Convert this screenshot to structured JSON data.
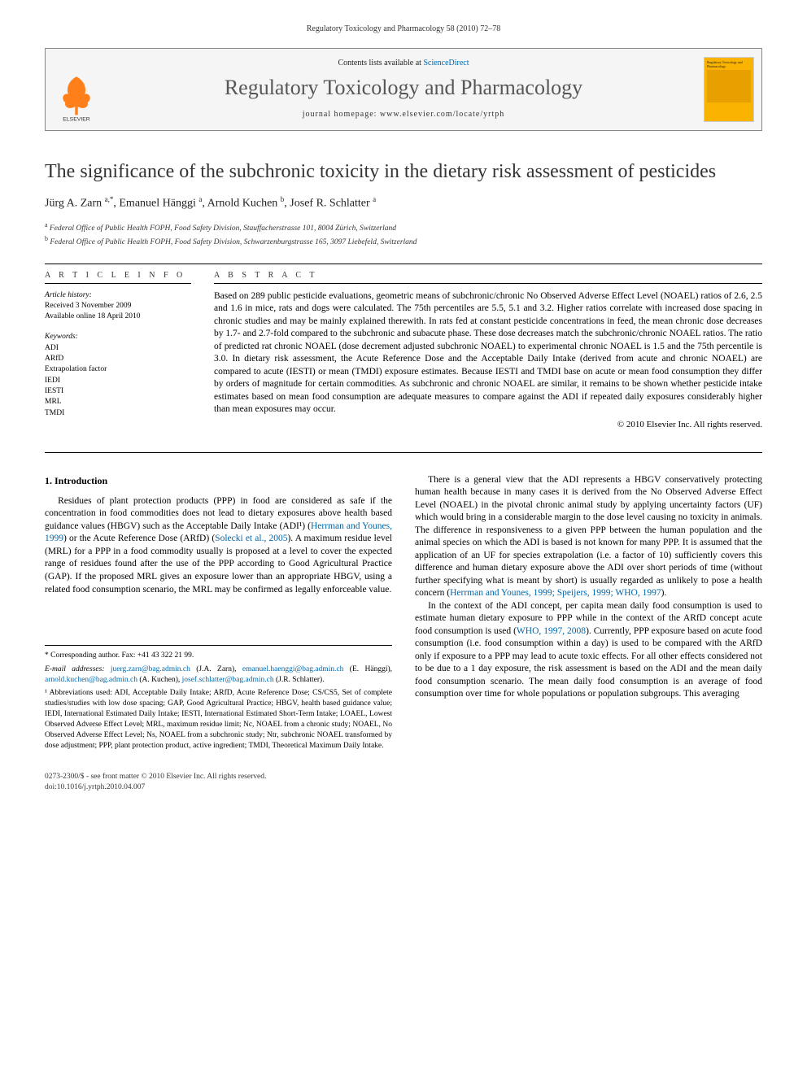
{
  "header_running": "Regulatory Toxicology and Pharmacology 58 (2010) 72–78",
  "masthead": {
    "contents_prefix": "Contents lists available at ",
    "contents_link": "ScienceDirect",
    "journal_title": "Regulatory Toxicology and Pharmacology",
    "homepage_label": "journal homepage: www.elsevier.com/locate/yrtph",
    "publisher_logo_text": "ELSEVIER",
    "cover_title": "Regulatory Toxicology and Pharmacology"
  },
  "article": {
    "title": "The significance of the subchronic toxicity in the dietary risk assessment of pesticides",
    "authors_html": "Jürg A. Zarn <sup>a,*</sup>, Emanuel Hänggi <sup>a</sup>, Arnold Kuchen <sup>b</sup>, Josef R. Schlatter <sup>a</sup>",
    "affiliations": {
      "a": "Federal Office of Public Health FOPH, Food Safety Division, Stauffacherstrasse 101, 8004 Zürich, Switzerland",
      "b": "Federal Office of Public Health FOPH, Food Safety Division, Schwarzenburgstrasse 165, 3097 Liebefeld, Switzerland"
    }
  },
  "article_info": {
    "heading": "A R T I C L E   I N F O",
    "history_label": "Article history:",
    "received": "Received 3 November 2009",
    "online": "Available online 18 April 2010",
    "keywords_label": "Keywords:",
    "keywords": [
      "ADI",
      "ARfD",
      "Extrapolation factor",
      "IEDI",
      "IESTI",
      "MRL",
      "TMDI"
    ]
  },
  "abstract": {
    "heading": "A B S T R A C T",
    "text": "Based on 289 public pesticide evaluations, geometric means of subchronic/chronic No Observed Adverse Effect Level (NOAEL) ratios of 2.6, 2.5 and 1.6 in mice, rats and dogs were calculated. The 75th percentiles are 5.5, 5.1 and 3.2. Higher ratios correlate with increased dose spacing in chronic studies and may be mainly explained therewith. In rats fed at constant pesticide concentrations in feed, the mean chronic dose decreases by 1.7- and 2.7-fold compared to the subchronic and subacute phase. These dose decreases match the subchronic/chronic NOAEL ratios. The ratio of predicted rat chronic NOAEL (dose decrement adjusted subchronic NOAEL) to experimental chronic NOAEL is 1.5 and the 75th percentile is 3.0. In dietary risk assessment, the Acute Reference Dose and the Acceptable Daily Intake (derived from acute and chronic NOAEL) are compared to acute (IESTI) or mean (TMDI) exposure estimates. Because IESTI and TMDI base on acute or mean food consumption they differ by orders of magnitude for certain commodities. As subchronic and chronic NOAEL are similar, it remains to be shown whether pesticide intake estimates based on mean food consumption are adequate measures to compare against the ADI if repeated daily exposures considerably higher than mean exposures may occur.",
    "copyright": "© 2010 Elsevier Inc. All rights reserved."
  },
  "body": {
    "section1_heading": "1. Introduction",
    "p1": "Residues of plant protection products (PPP) in food are considered as safe if the concentration in food commodities does not lead to dietary exposures above health based guidance values (HBGV) such as the Acceptable Daily Intake (ADI¹) (Herrman and Younes, 1999) or the Acute Reference Dose (ARfD) (Solecki et al., 2005). A maximum residue level (MRL) for a PPP in a food commodity usually is proposed at a level to cover the expected range of residues found after the use of the PPP according to Good Agricultural Practice (GAP). If the proposed MRL gives an exposure lower than an appropriate HBGV, using a related food consumption scenario, the MRL may be confirmed as legally enforceable value.",
    "p2": "There is a general view that the ADI represents a HBGV conservatively protecting human health because in many cases it is derived from the No Observed Adverse Effect Level (NOAEL) in the pivotal chronic animal study by applying uncertainty factors (UF) which would bring in a considerable margin to the dose level causing no toxicity in animals. The difference in responsiveness to a given PPP between the human population and the animal species on which the ADI is based is not known for many PPP. It is assumed that the application of an UF for species extrapolation (i.e. a factor of 10) sufficiently covers this difference and human dietary exposure above the ADI over short periods of time (without further specifying what is meant by short) is usually regarded as unlikely to pose a health concern (Herrman and Younes, 1999; Speijers, 1999; WHO, 1997).",
    "p3": "In the context of the ADI concept, per capita mean daily food consumption is used to estimate human dietary exposure to PPP while in the context of the ARfD concept acute food consumption is used (WHO, 1997, 2008). Currently, PPP exposure based on acute food consumption (i.e. food consumption within a day) is used to be compared with the ARfD only if exposure to a PPP may lead to acute toxic effects. For all other effects considered not to be due to a 1 day exposure, the risk assessment is based on the ADI and the mean daily food consumption scenario. The mean daily food consumption is an average of food consumption over time for whole populations or population subgroups. This averaging",
    "cite1": "Herrman and Younes, 1999",
    "cite2": "Solecki et al., 2005",
    "cite3": "Herrman and Younes, 1999; Speijers, 1999; WHO, 1997",
    "cite4": "WHO, 1997, 2008"
  },
  "footnotes": {
    "corresponding": "* Corresponding author. Fax: +41 43 322 21 99.",
    "emails_label": "E-mail addresses:",
    "emails": [
      {
        "addr": "juerg.zarn@bag.admin.ch",
        "who": "(J.A. Zarn)"
      },
      {
        "addr": "emanuel.haenggi@bag.admin.ch",
        "who": "(E. Hänggi)"
      },
      {
        "addr": "arnold.kuchen@bag.admin.ch",
        "who": "(A. Kuchen)"
      },
      {
        "addr": "josef.schlatter@bag.admin.ch",
        "who": "(J.R. Schlatter)"
      }
    ],
    "abbrev": "¹ Abbreviations used: ADI, Acceptable Daily Intake; ARfD, Acute Reference Dose; CS/CS5, Set of complete studies/studies with low dose spacing; GAP, Good Agricultural Practice; HBGV, health based guidance value; IEDI, International Estimated Daily Intake; IESTI, International Estimated Short-Term Intake; LOAEL, Lowest Observed Adverse Effect Level; MRL, maximum residue limit; Nc, NOAEL from a chronic study; NOAEL, No Observed Adverse Effect Level; Ns, NOAEL from a subchronic study; Ntr, subchronic NOAEL transformed by dose adjustment; PPP, plant protection product, active ingredient; TMDI, Theoretical Maximum Daily Intake."
  },
  "footer": {
    "line1": "0273-2300/$ - see front matter © 2010 Elsevier Inc. All rights reserved.",
    "doi": "doi:10.1016/j.yrtph.2010.04.007"
  },
  "colors": {
    "link": "#0066aa",
    "elsevier_orange": "#ff7f1a",
    "journal_title_gray": "#565656",
    "cover_yellow": "#f9b300"
  }
}
